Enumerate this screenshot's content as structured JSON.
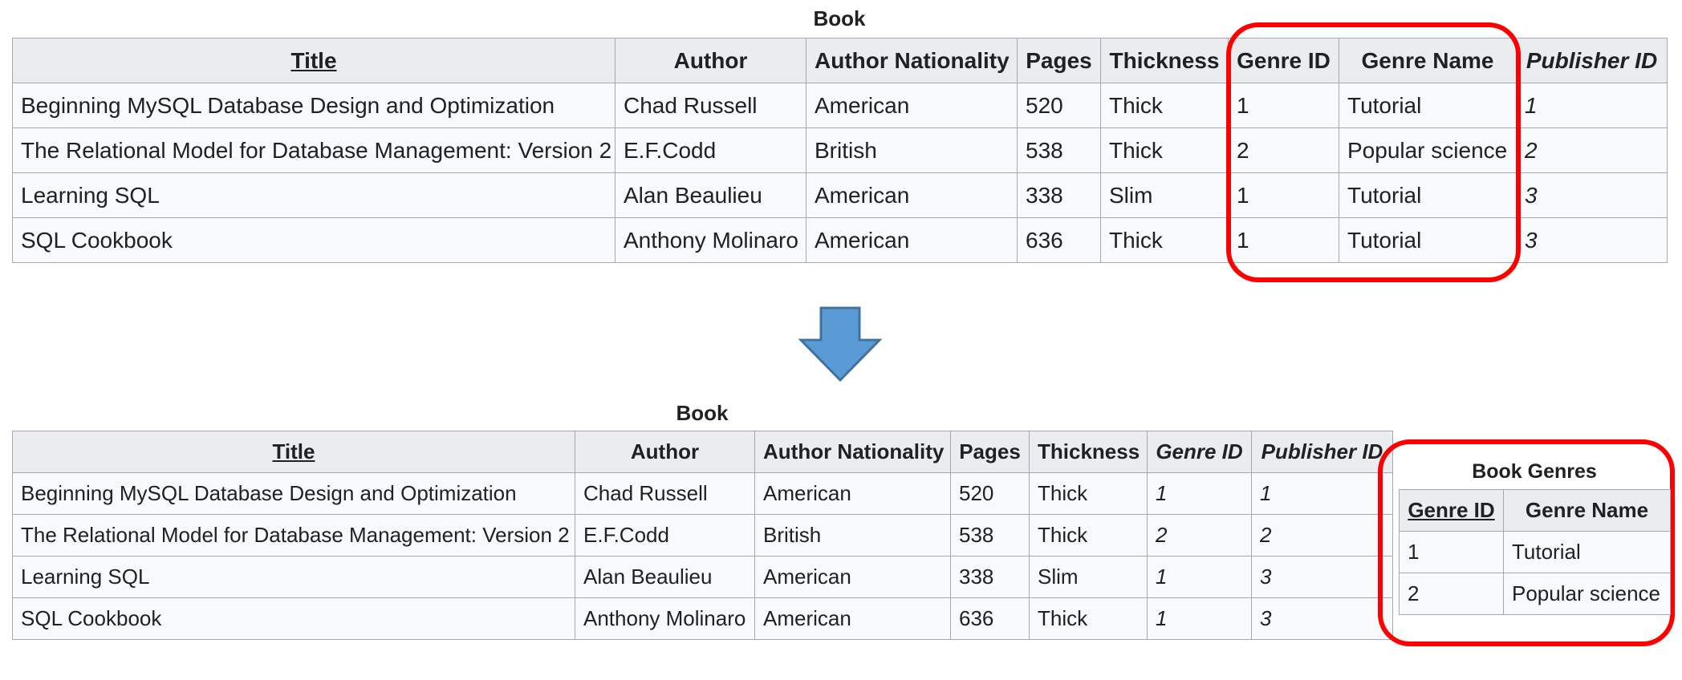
{
  "book_before": {
    "caption": "Book",
    "headers": [
      "Title",
      "Author",
      "Author Nationality",
      "Pages",
      "Thickness",
      "Genre ID",
      "Genre Name",
      "Publisher ID"
    ],
    "rows": [
      [
        "Beginning MySQL Database Design and Optimization",
        "Chad Russell",
        "American",
        "520",
        "Thick",
        "1",
        "Tutorial",
        "1"
      ],
      [
        "The Relational Model for Database Management: Version 2",
        "E.F.Codd",
        "British",
        "538",
        "Thick",
        "2",
        "Popular science",
        "2"
      ],
      [
        "Learning SQL",
        "Alan Beaulieu",
        "American",
        "338",
        "Slim",
        "1",
        "Tutorial",
        "3"
      ],
      [
        "SQL Cookbook",
        "Anthony Molinaro",
        "American",
        "636",
        "Thick",
        "1",
        "Tutorial",
        "3"
      ]
    ]
  },
  "book_after": {
    "caption": "Book",
    "headers": [
      "Title",
      "Author",
      "Author Nationality",
      "Pages",
      "Thickness",
      "Genre ID",
      "Publisher ID"
    ],
    "rows": [
      [
        "Beginning MySQL Database Design and Optimization",
        "Chad Russell",
        "American",
        "520",
        "Thick",
        "1",
        "1"
      ],
      [
        "The Relational Model for Database Management: Version 2",
        "E.F.Codd",
        "British",
        "538",
        "Thick",
        "2",
        "2"
      ],
      [
        "Learning SQL",
        "Alan Beaulieu",
        "American",
        "338",
        "Slim",
        "1",
        "3"
      ],
      [
        "SQL Cookbook",
        "Anthony Molinaro",
        "American",
        "636",
        "Thick",
        "1",
        "3"
      ]
    ]
  },
  "book_genres": {
    "caption": "Book Genres",
    "headers": [
      "Genre ID",
      "Genre Name"
    ],
    "rows": [
      [
        "1",
        "Tutorial"
      ],
      [
        "2",
        "Popular science"
      ]
    ]
  },
  "colors": {
    "highlight": "#ff0000",
    "arrow_fill": "#5b9bd5",
    "arrow_stroke": "#41719c"
  },
  "icons": {
    "arrow": "down-arrow-icon"
  }
}
